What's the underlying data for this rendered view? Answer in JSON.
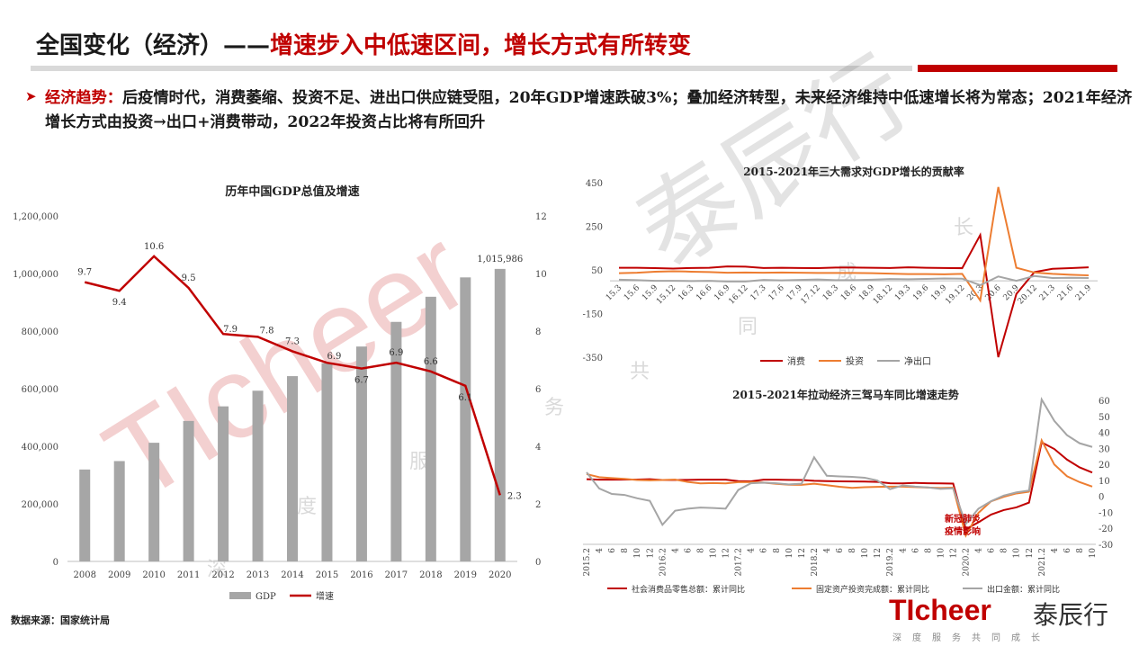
{
  "header": {
    "title_main": "全国变化（经济）——",
    "title_sub": "增速步入中低速区间，增长方式有所转变",
    "bullet_label": "经济趋势：",
    "bullet_text": "后疫情时代，消费萎缩、投资不足、进出口供应链受阻，20年GDP增速跌破3%；叠加经济转型，未来经济维持中低速增长将为常态；2021年经济增长方式由投资→出口+消费带动，2022年投资占比将有所回升"
  },
  "source": "数据来源：国家统计局",
  "watermark": {
    "text_en": "TIcheer",
    "text_cn": "泰辰行",
    "tag": [
      "深",
      "度",
      "服",
      "务",
      "共",
      "同",
      "成",
      "长"
    ]
  },
  "logo": {
    "text_en": "TIcheer",
    "text_cn": "泰辰行",
    "tag": "深度服务共同成长"
  },
  "colors": {
    "brand_red": "#c00000",
    "bar_gray": "#a6a6a6",
    "orange": "#ed7d31",
    "gray_line": "#a5a5a5"
  },
  "chart_data": [
    {
      "type": "bar",
      "title": "历年中国GDP总值及增速",
      "categories": [
        "2008",
        "2009",
        "2010",
        "2011",
        "2012",
        "2013",
        "2014",
        "2015",
        "2016",
        "2017",
        "2018",
        "2019",
        "2020"
      ],
      "series": [
        {
          "name": "GDP",
          "kind": "bar",
          "axis": "left",
          "values": [
            319245,
            348518,
            412119,
            487940,
            538580,
            592963,
            643563,
            688858,
            746395,
            832036,
            919281,
            986515,
            1015986
          ]
        },
        {
          "name": "增速",
          "kind": "line",
          "axis": "right",
          "values": [
            9.7,
            9.4,
            10.6,
            9.5,
            7.9,
            7.8,
            7.3,
            6.9,
            6.7,
            6.9,
            6.6,
            6.1,
            2.3
          ]
        }
      ],
      "bar_labels": {
        "last": "1,015,986"
      },
      "left_ticks": [
        "0",
        "200,000",
        "400,000",
        "600,000",
        "800,000",
        "1,000,000",
        "1,200,000"
      ],
      "left_ylim": [
        0,
        1200000
      ],
      "right_ticks": [
        "0",
        "2",
        "4",
        "6",
        "8",
        "10",
        "12"
      ],
      "right_ylim": [
        0,
        12
      ],
      "legend": [
        "GDP",
        "增速"
      ],
      "legend_position": "bottom"
    },
    {
      "type": "line",
      "title": "2015-2021年三大需求对GDP增长的贡献率",
      "x": [
        "15.3",
        "15.6",
        "15.9",
        "15.12",
        "16.3",
        "16.6",
        "16.9",
        "16.12",
        "17.3",
        "17.6",
        "17.9",
        "17.12",
        "18.3",
        "18.6",
        "18.9",
        "18.12",
        "19.3",
        "19.6",
        "19.9",
        "19.12",
        "20.3",
        "20.6",
        "20.9",
        "20.12",
        "21.3",
        "21.6",
        "21.9"
      ],
      "series": [
        {
          "name": "消费",
          "values": [
            60,
            60,
            58,
            56,
            59,
            60,
            66,
            65,
            59,
            60,
            59,
            58,
            61,
            61,
            60,
            59,
            62,
            60,
            59,
            58,
            210,
            -350,
            -60,
            40,
            55,
            58,
            62
          ]
        },
        {
          "name": "投资",
          "values": [
            35,
            37,
            42,
            44,
            42,
            40,
            37,
            38,
            37,
            38,
            37,
            36,
            36,
            36,
            35,
            33,
            31,
            31,
            30,
            32,
            -90,
            430,
            60,
            38,
            32,
            28,
            25
          ]
        },
        {
          "name": "净出口",
          "values": [
            5,
            3,
            0,
            0,
            -1,
            0,
            -3,
            -3,
            4,
            2,
            4,
            6,
            3,
            3,
            5,
            8,
            7,
            9,
            11,
            10,
            -20,
            20,
            0,
            22,
            13,
            14,
            13
          ]
        }
      ],
      "y_ticks": [
        "-350",
        "-150",
        "50",
        "250",
        "450"
      ],
      "ylim": [
        -350,
        450
      ],
      "legend": [
        "消费",
        "投资",
        "净出口"
      ],
      "legend_position": "bottom"
    },
    {
      "type": "line",
      "title": "2015-2021年拉动经济三驾马车同比增速走势",
      "x_ticks": [
        "2015.2",
        "4",
        "6",
        "8",
        "10",
        "12",
        "2016.2",
        "4",
        "6",
        "8",
        "10",
        "12",
        "2017.2",
        "4",
        "6",
        "8",
        "10",
        "12",
        "2018.2",
        "4",
        "6",
        "8",
        "10",
        "12",
        "2019.2",
        "4",
        "6",
        "8",
        "10",
        "12",
        "2020.2",
        "4",
        "6",
        "8",
        "10",
        "12",
        "2021.2",
        "4",
        "6",
        "8",
        "10"
      ],
      "y_ticks": [
        "-30",
        "-20",
        "-10",
        "0",
        "10",
        "20",
        "30",
        "40",
        "50",
        "60"
      ],
      "ylim": [
        -30,
        60
      ],
      "annotation": "新冠肺炎疫情影响",
      "series": [
        {
          "name": "社会消费品零售总额：累计同比",
          "values": [
            10.7,
            10.4,
            10.4,
            10.5,
            10.5,
            10.7,
            10.2,
            10.2,
            10.3,
            10.4,
            10.4,
            10.4,
            9.5,
            9.4,
            10.4,
            10.4,
            10.3,
            10.2,
            9.7,
            9.5,
            9.4,
            9.3,
            9.2,
            9.0,
            8.2,
            8.1,
            8.4,
            8.2,
            8.1,
            8.0,
            -20.5,
            -16.2,
            -11.4,
            -8.6,
            -6.9,
            -3.9,
            33.8,
            29.6,
            23.0,
            18.1,
            14.9
          ]
        },
        {
          "name": "固定资产投资完成额：累计同比",
          "values": [
            13.9,
            12.0,
            11.4,
            10.9,
            10.2,
            10.0,
            10.2,
            10.5,
            9.0,
            8.1,
            8.3,
            8.1,
            8.9,
            8.9,
            8.6,
            7.8,
            7.3,
            7.2,
            7.9,
            7.0,
            6.0,
            5.3,
            5.7,
            5.9,
            6.1,
            6.1,
            5.8,
            5.5,
            5.2,
            5.4,
            -24.5,
            -10.3,
            -3.1,
            -0.3,
            1.8,
            2.9,
            35.0,
            19.9,
            12.6,
            8.9,
            6.1
          ]
        },
        {
          "name": "出口金额：累计同比",
          "values": [
            15.0,
            4.9,
            1.5,
            0.9,
            -1.2,
            -2.8,
            -17.8,
            -9.0,
            -7.7,
            -7.0,
            -7.3,
            -7.7,
            4.0,
            8.2,
            8.5,
            8.2,
            7.5,
            7.9,
            24.4,
            12.9,
            12.5,
            12.2,
            11.6,
            9.9,
            4.5,
            6.8,
            6.1,
            5.6,
            4.7,
            5.0,
            -17.2,
            -7.7,
            -3.0,
            0.5,
            2.5,
            3.6,
            60.6,
            47.2,
            38.3,
            33.2,
            30.9
          ]
        }
      ],
      "legend": [
        "社会消费品零售总额：累计同比",
        "固定资产投资完成额：累计同比",
        "出口金额：累计同比"
      ],
      "legend_position": "bottom"
    }
  ]
}
